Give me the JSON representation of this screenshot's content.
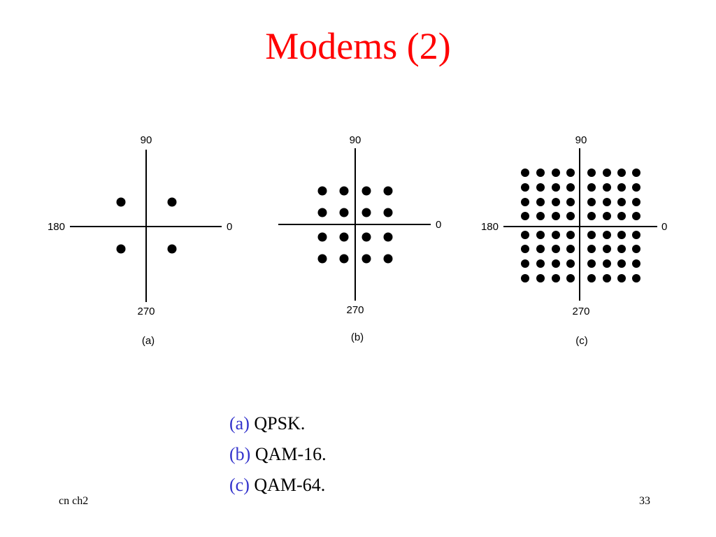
{
  "title": "Modems (2)",
  "diagrams": [
    {
      "id": "a",
      "label_top": "90",
      "label_left": "180",
      "label_right": "0",
      "label_bottom": "270",
      "caption": "(a)",
      "grid_size": 2
    },
    {
      "id": "b",
      "label_top": "90",
      "label_left": "",
      "label_right": "0",
      "label_bottom": "270",
      "caption": "(b)",
      "grid_size": 4
    },
    {
      "id": "c",
      "label_top": "90",
      "label_left": "180",
      "label_right": "0",
      "label_bottom": "270",
      "caption": "(c)",
      "grid_size": 8
    }
  ],
  "captions": [
    {
      "tag": "(a)",
      "text": " QPSK."
    },
    {
      "tag": "(b)",
      "text": " QAM-16."
    },
    {
      "tag": "(c)",
      "text": " QAM-64."
    }
  ],
  "footer": {
    "left": "cn ch2",
    "right": "33"
  },
  "colors": {
    "title": "#ff0000",
    "caption_tag": "#3333cc",
    "dot": "#000000"
  }
}
